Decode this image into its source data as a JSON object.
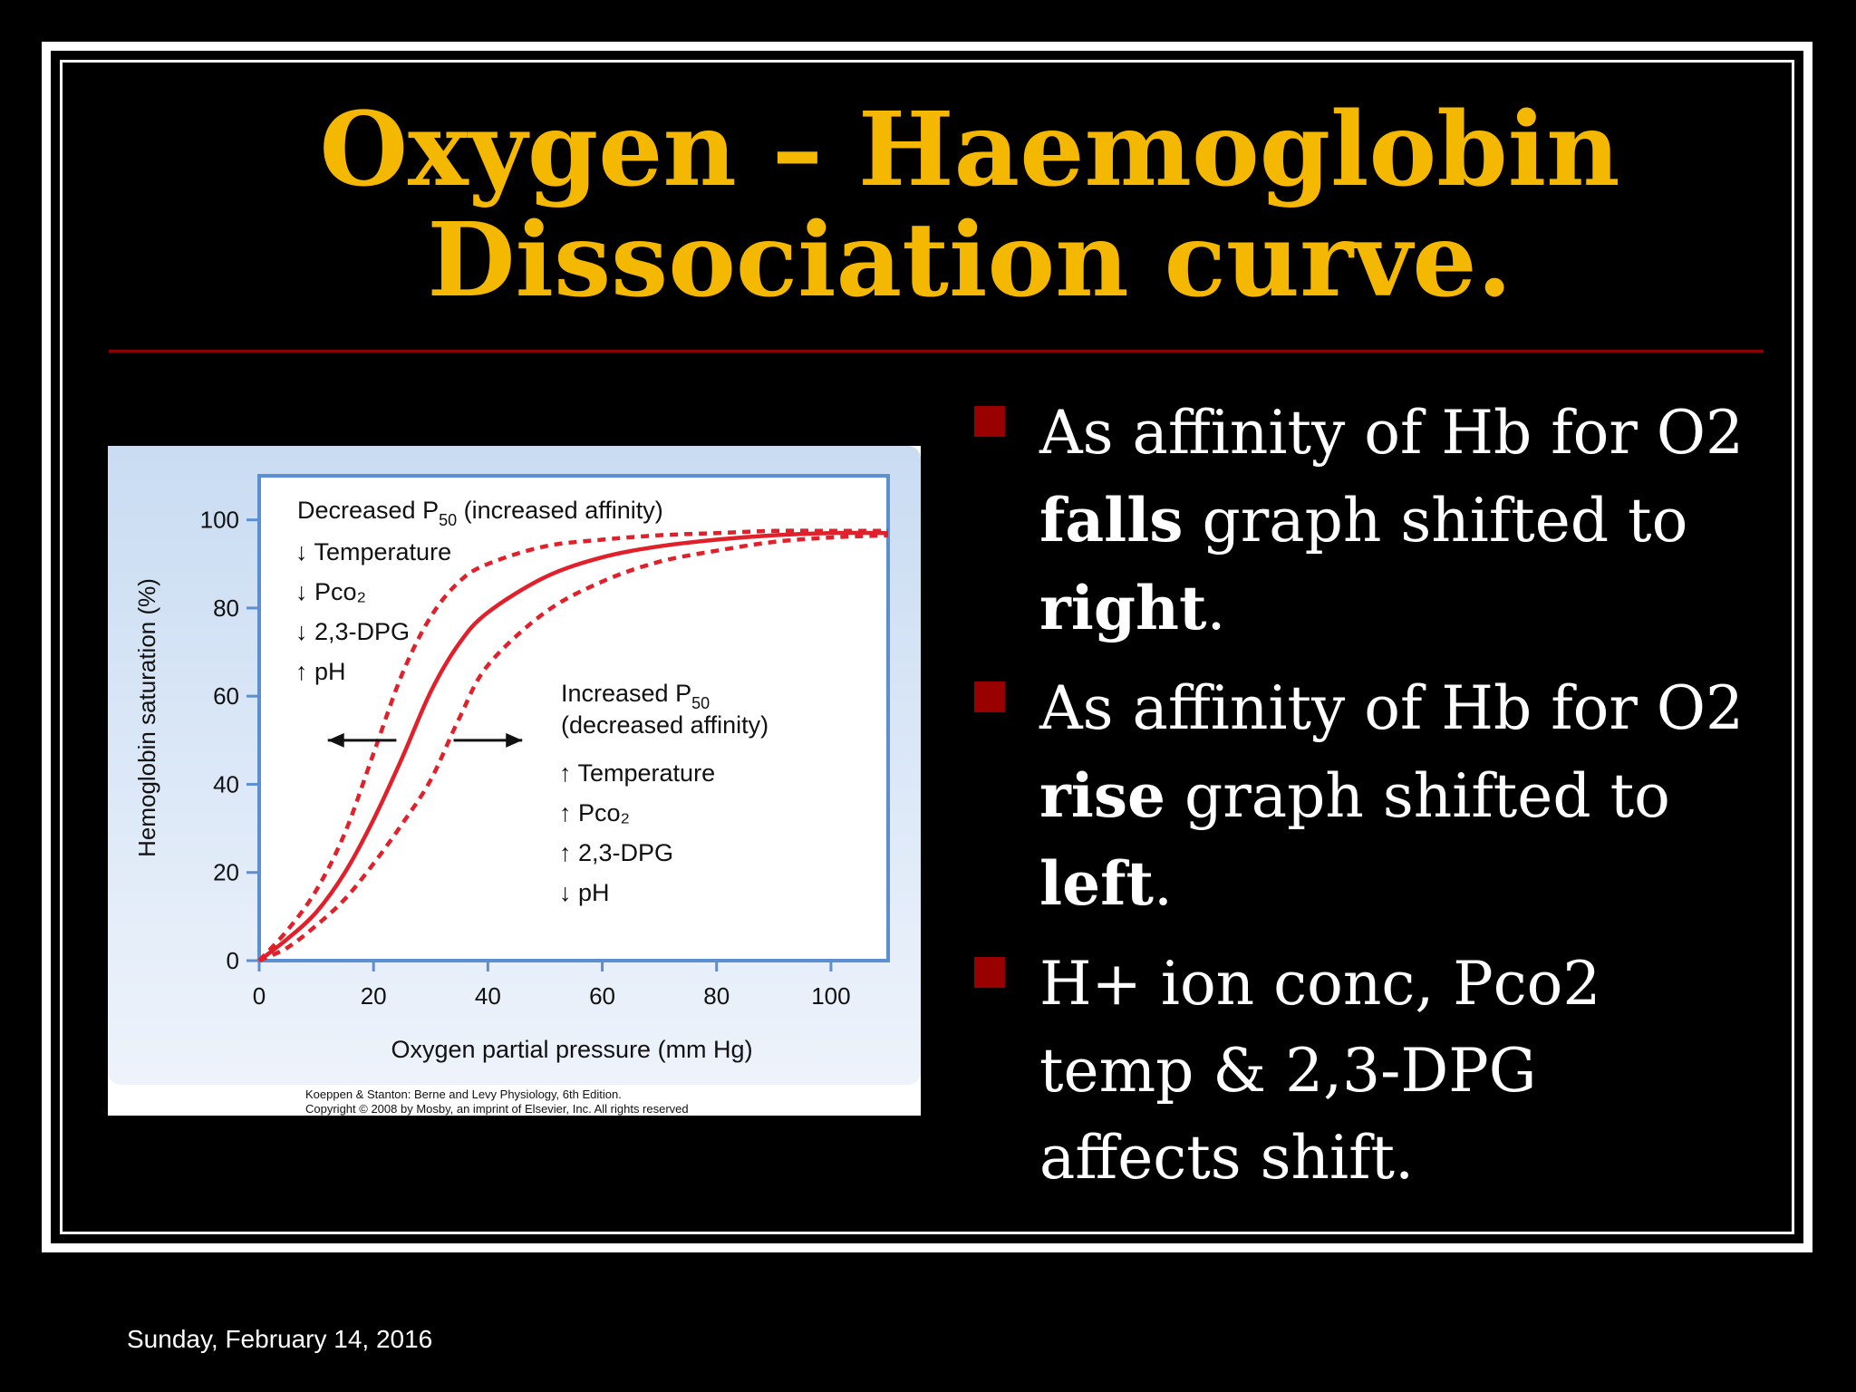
{
  "slide": {
    "title_line1": "Oxygen – Haemoglobin",
    "title_line2": "Dissociation curve.",
    "date": "Sunday, February 14, 2016"
  },
  "bullets": [
    {
      "t1": "As affinity of Hb for O2",
      "b1": "falls",
      "t2": " graph shifted to",
      "b2": "right",
      "t3": "."
    },
    {
      "t1": "As affinity of Hb for O2",
      "b1": "rise",
      "t2": " graph shifted to",
      "b2": "left",
      "t3": "."
    },
    {
      "l1": "H+ ion conc, Pco2",
      "l2": "temp & 2,3-DPG",
      "l3": "affects shift."
    }
  ],
  "figure": {
    "credit_line1": "Koeppen & Stanton: Berne and Levy Physiology, 6th Edition.",
    "credit_line2": "Copyright © 2008 by Mosby, an imprint of Elsevier, Inc. All rights reserved",
    "left_label": {
      "title_a": "Decreased P",
      "title_sub": "50",
      "title_b": " (increased affinity)",
      "items": [
        "↓ Temperature",
        "↓ Pco₂",
        "↓ 2,3-DPG",
        "↑ pH"
      ]
    },
    "right_label": {
      "title_a": "Increased P",
      "title_sub": "50",
      "line2": "(decreased affinity)",
      "items": [
        "↑ Temperature",
        "↑ Pco₂",
        "↑ 2,3-DPG",
        "↓ pH"
      ]
    }
  },
  "chart_data": {
    "type": "line",
    "xlabel": "Oxygen partial pressure (mm Hg)",
    "ylabel": "Hemoglobin saturation (%)",
    "xlim": [
      0,
      110
    ],
    "ylim": [
      0,
      110
    ],
    "xticks": [
      0,
      20,
      40,
      60,
      80,
      100
    ],
    "yticks": [
      0,
      20,
      40,
      60,
      80,
      100
    ],
    "series": [
      {
        "style": "solid",
        "color": "#e0202a",
        "x": [
          0,
          5,
          10,
          15,
          20,
          25,
          30,
          35,
          40,
          50,
          60,
          70,
          80,
          90,
          100,
          110
        ],
        "y": [
          0,
          5,
          11,
          20,
          32,
          46,
          61,
          72,
          79,
          87,
          91.5,
          94,
          95.5,
          96.5,
          97,
          97
        ]
      },
      {
        "style": "dashed",
        "color": "#e0202a",
        "x": [
          0,
          5,
          10,
          15,
          20,
          25,
          30,
          35,
          40,
          50,
          60,
          70,
          80,
          90,
          100,
          110
        ],
        "y": [
          0,
          7,
          16,
          29,
          47,
          65,
          78,
          86,
          90,
          94,
          95.5,
          96.5,
          97,
          97.5,
          97.5,
          97.5
        ]
      },
      {
        "style": "dashed",
        "color": "#e0202a",
        "x": [
          0,
          5,
          10,
          15,
          20,
          25,
          30,
          35,
          40,
          50,
          60,
          70,
          80,
          90,
          100,
          110
        ],
        "y": [
          0,
          3,
          8,
          14,
          22,
          31,
          41,
          55,
          67,
          79,
          86,
          90.5,
          93,
          95,
          96,
          96.5
        ]
      }
    ],
    "arrows": [
      {
        "x_from": 24,
        "x_to": 12,
        "y": 50,
        "direction": "left"
      },
      {
        "x_from": 34,
        "x_to": 46,
        "y": 50,
        "direction": "right"
      }
    ]
  }
}
